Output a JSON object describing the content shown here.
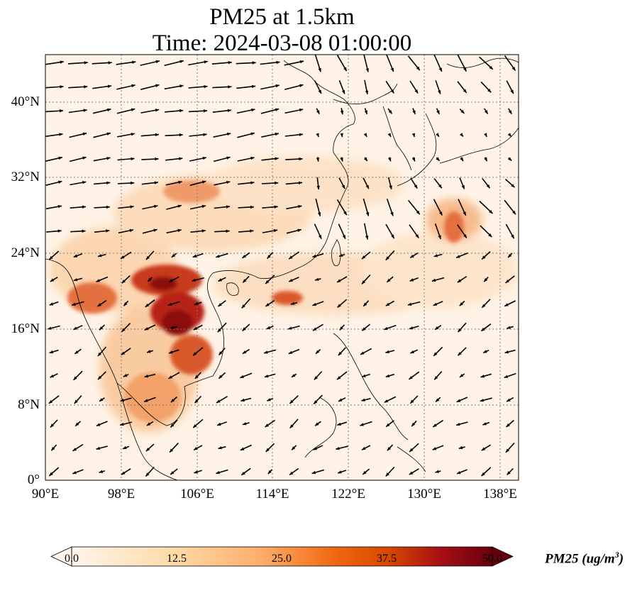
{
  "title": {
    "line1": "PM25 at 1.5km",
    "line2": "Time: 2024-03-08 01:00:00"
  },
  "map": {
    "lon_range": [
      90,
      140
    ],
    "lat_range": [
      0,
      45
    ],
    "y_ticks": [
      "0°",
      "8°N",
      "16°N",
      "24°N",
      "32°N",
      "40°N"
    ],
    "x_ticks": [
      "90°E",
      "98°E",
      "106°E",
      "114°E",
      "122°E",
      "130°E",
      "138°E"
    ],
    "gridlines": true
  },
  "colorbar": {
    "ticks": [
      "0.0",
      "12.5",
      "25.0",
      "37.5",
      "50.0"
    ],
    "min": 0,
    "max": 50,
    "extend": "both",
    "colormap_stops": [
      "#fff5eb",
      "#fdd9a5",
      "#fdae6b",
      "#f16913",
      "#d94801",
      "#a50f15",
      "#67000d"
    ],
    "label_main": "PM25 (ug/m",
    "label_sup": "3",
    "label_close": ")"
  },
  "colors": {
    "background_field": "#fef3e6",
    "coast": "#000000",
    "grid": "#7a7a7a",
    "arrow": "#000000"
  }
}
